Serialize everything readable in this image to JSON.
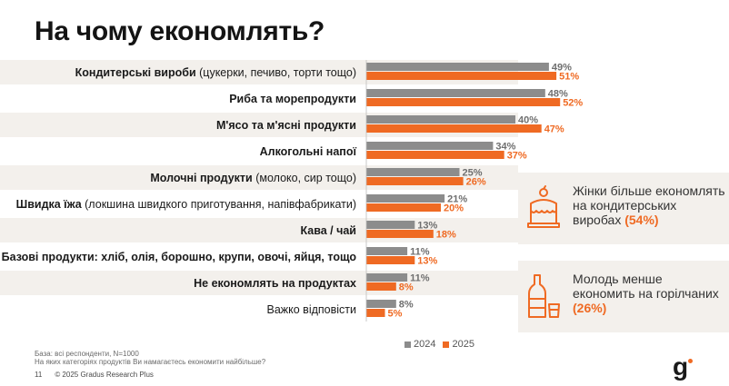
{
  "title": "На чому економлять?",
  "chart_data": {
    "type": "bar",
    "orientation": "horizontal",
    "categories": [
      {
        "bold": "Кондитерські вироби",
        "rest": " (цукерки, печиво, торти тощо)"
      },
      {
        "bold": "Риба та морепродукти",
        "rest": ""
      },
      {
        "bold": "М'ясо та м'ясні продукти",
        "rest": ""
      },
      {
        "bold": "Алкогольні напої",
        "rest": ""
      },
      {
        "bold": "Молочні продукти",
        "rest": " (молоко, сир тощо)"
      },
      {
        "bold": "Швидка їжа",
        "rest": " (локшина швидкого приготування, напівфабрикати)"
      },
      {
        "bold": "Кава / чай",
        "rest": ""
      },
      {
        "bold": "Базові продукти: хліб, олія, борошно, крупи, овочі, яйця, тощо",
        "rest": ""
      },
      {
        "bold": "Не економлять на продуктах",
        "rest": ""
      },
      {
        "bold": "",
        "rest": "Важко відповісти"
      }
    ],
    "series": [
      {
        "name": "2024",
        "color": "#8c8c8c",
        "values": [
          49,
          48,
          40,
          34,
          25,
          21,
          13,
          11,
          11,
          8
        ]
      },
      {
        "name": "2025",
        "color": "#ef6a23",
        "values": [
          51,
          52,
          47,
          37,
          26,
          20,
          18,
          13,
          8,
          5
        ]
      }
    ],
    "value_suffix": "%",
    "xlim": [
      0,
      100
    ],
    "grid": false,
    "legend_placement": "bottom"
  },
  "notes": {
    "base": "База: всі респонденти, N=1000",
    "question": "На яких категоріях продуктів Ви намагаєтесь економити найбільше?"
  },
  "footer": {
    "page": "11",
    "copyright": "© 2025 Gradus Research Plus"
  },
  "cards": [
    {
      "text": "Жінки більше економлять на кондитерських виробах",
      "highlight": "(54%)",
      "icon": "cake-icon"
    },
    {
      "text": "Молодь менше економить на горілчаних",
      "highlight": "(26%)",
      "icon": "bottle-glass-icon"
    }
  ],
  "logo": "g",
  "colors": {
    "accent": "#ef6a23",
    "grey": "#8c8c8c",
    "band": "#f3f0ec"
  }
}
